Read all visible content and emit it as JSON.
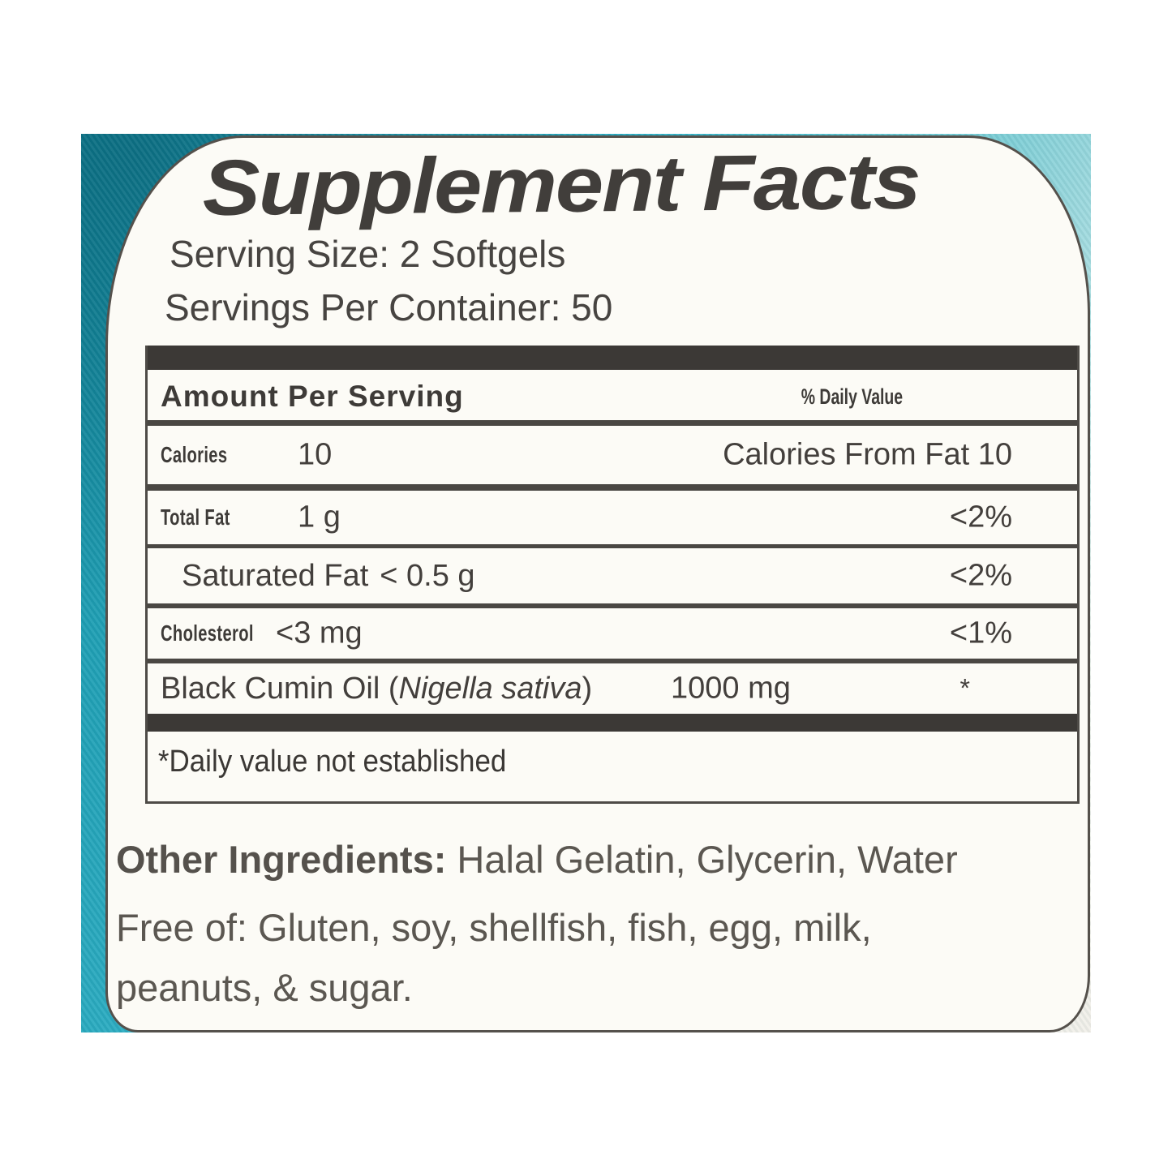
{
  "label": {
    "title": "Supplement Facts",
    "serving_size": "Serving Size: 2 Softgels",
    "servings_per_container": "Servings Per Container: 50",
    "facts": {
      "header_left": "Amount Per Serving",
      "header_right": "% Daily Value",
      "rows": [
        {
          "label": "Calories",
          "amount": "10",
          "dv": "Calories From Fat 10"
        },
        {
          "label": "Total Fat",
          "amount": "1 g",
          "dv": "<2%"
        },
        {
          "label": "Saturated Fat",
          "amount": "< 0.5 g",
          "dv": "<2%"
        },
        {
          "label": "Cholesterol",
          "amount": "<3 mg",
          "dv": "<1%"
        },
        {
          "label_prefix": "Black Cumin Oil (",
          "label_italic": "Nigella sativa",
          "label_suffix": ")",
          "amount": "1000 mg",
          "dv": "*"
        }
      ],
      "footnote": "*Daily value not established"
    },
    "other_ingredients": {
      "lead": "Other Ingredients:",
      "text": " Halal Gelatin, Glycerin, Water"
    },
    "free_of_line1": "Free of: Gluten, soy, shellfish, fish, egg, milk,",
    "free_of_line2": "peanuts, & sugar."
  },
  "colors": {
    "bottle_teal": "#1f9fb4",
    "bottle_teal_dark": "#0e879c",
    "bottle_teal_light": "#a5dce0",
    "label_background": "#fcfbf6",
    "text_dark": "#3e3b38",
    "bar_black": "#3c3936"
  }
}
